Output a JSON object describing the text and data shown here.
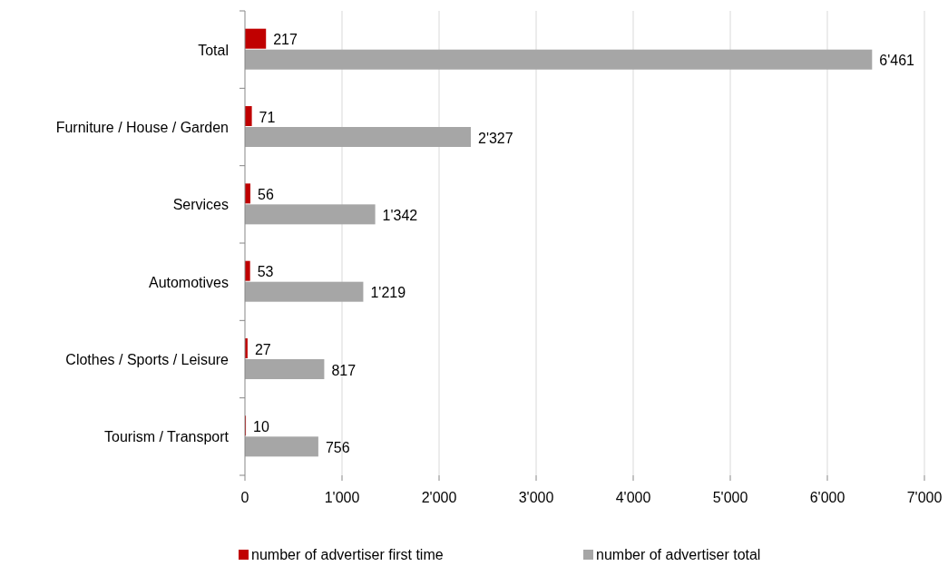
{
  "chart_data": {
    "type": "bar",
    "orientation": "horizontal",
    "categories": [
      "Total",
      "Furniture / House / Garden",
      "Services",
      "Automotives",
      "Clothes / Sports / Leisure",
      "Tourism / Transport"
    ],
    "series": [
      {
        "name": "number of advertiser first time",
        "color": "#c00000",
        "values": [
          217,
          71,
          56,
          53,
          27,
          10
        ],
        "value_labels": [
          "217",
          "71",
          "56",
          "53",
          "27",
          "10"
        ]
      },
      {
        "name": "number of advertiser total",
        "color": "#a6a6a6",
        "values": [
          6461,
          2327,
          1342,
          1219,
          817,
          756
        ],
        "value_labels": [
          "6'461",
          "2'327",
          "1'342",
          "1'219",
          "817",
          "756"
        ]
      }
    ],
    "xlim": [
      0,
      7000
    ],
    "xticks": [
      0,
      {
        "value": 1000,
        "label": "1'000"
      },
      {
        "value": 2000,
        "label": "2'000"
      },
      {
        "value": 3000,
        "label": "3'000"
      },
      {
        "value": 4000,
        "label": "4'000"
      },
      {
        "value": 5000,
        "label": "5'000"
      },
      {
        "value": 6000,
        "label": "6'000"
      },
      {
        "value": 7000,
        "label": "7'000"
      }
    ],
    "grid": "x",
    "legend": "bottom"
  }
}
